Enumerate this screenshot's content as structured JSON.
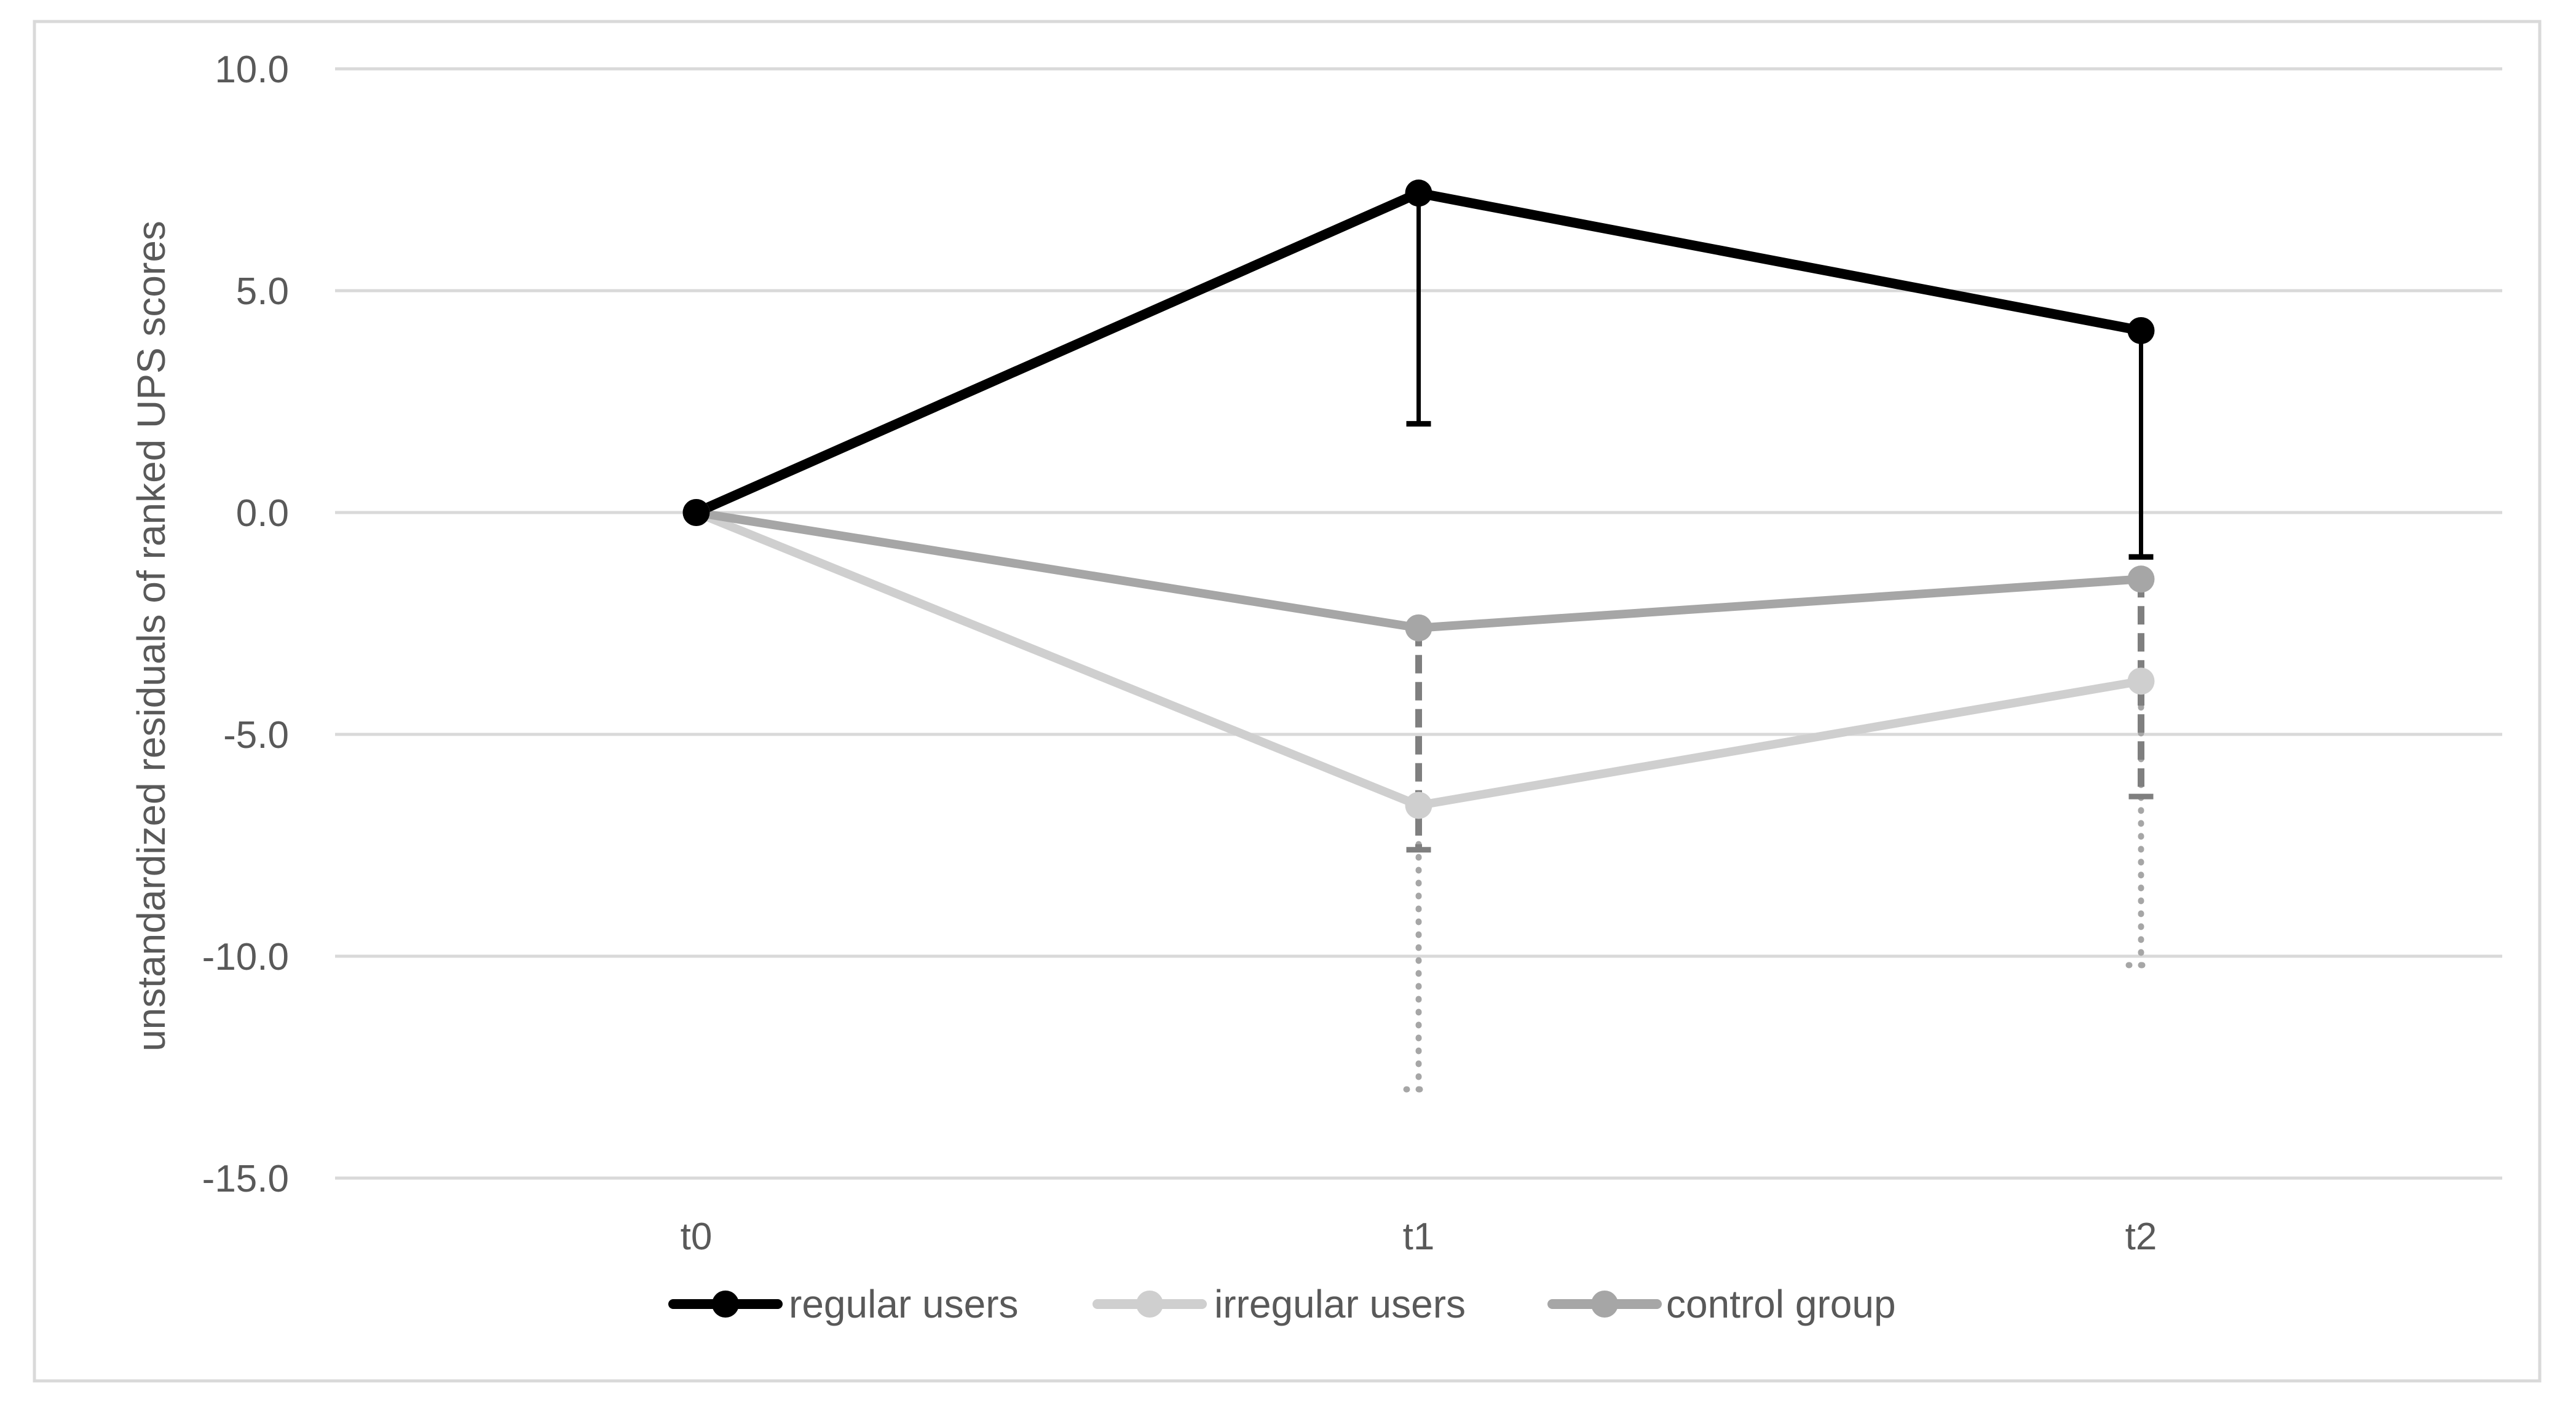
{
  "chart_data": {
    "type": "line",
    "title": "",
    "xlabel": "",
    "ylabel": "unstandardized residuals of ranked UPS scores",
    "categories": [
      "t0",
      "t1",
      "t2"
    ],
    "y_ticks": [
      "10.0",
      "5.0",
      "0.0",
      "-5.0",
      "-10.0",
      "-15.0"
    ],
    "ylim": [
      -15,
      10
    ],
    "grid": true,
    "legend_position": "bottom",
    "series": [
      {
        "name": "regular users",
        "values": [
          0,
          7.2,
          4.1
        ],
        "color": "#000000",
        "error_bar_ends": [
          null,
          2.0,
          -1.0
        ],
        "error_bar_style": "solid"
      },
      {
        "name": "irregular users",
        "values": [
          0,
          -6.6,
          -3.8
        ],
        "color": "#cfcfcf",
        "error_bar_ends": [
          null,
          -13.0,
          -10.2
        ],
        "error_bar_style": "dotted"
      },
      {
        "name": "control group",
        "values": [
          0,
          -2.6,
          -1.5
        ],
        "color": "#a6a6a6",
        "error_bar_ends": [
          null,
          -7.6,
          -6.4
        ],
        "error_bar_style": "dashed"
      }
    ]
  }
}
